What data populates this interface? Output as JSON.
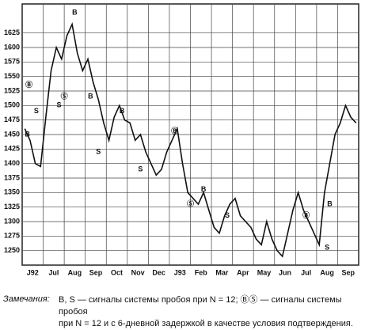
{
  "chart_data": {
    "type": "line",
    "categories": [
      "J92",
      null,
      null,
      null,
      "Jul",
      null,
      null,
      null,
      "Aug",
      null,
      null,
      null,
      "Sep",
      null,
      null,
      null,
      "Oct",
      null,
      null,
      null,
      "Nov",
      null,
      null,
      null,
      "Dec",
      null,
      null,
      null,
      "J93",
      null,
      null,
      null,
      "Feb",
      null,
      null,
      null,
      "Mar",
      null,
      null,
      null,
      "Apr",
      null,
      null,
      null,
      "May",
      null,
      null,
      null,
      "Jun",
      null,
      null,
      null,
      "Jul",
      null,
      null,
      null,
      "Aug",
      null,
      null,
      null,
      "Sep",
      null,
      null,
      null
    ],
    "values": [
      1460,
      1440,
      1400,
      1395,
      1480,
      1560,
      1600,
      1580,
      1620,
      1640,
      1590,
      1560,
      1580,
      1540,
      1510,
      1470,
      1440,
      1480,
      1500,
      1475,
      1470,
      1440,
      1450,
      1420,
      1400,
      1380,
      1390,
      1420,
      1440,
      1460,
      1400,
      1350,
      1340,
      1330,
      1350,
      1320,
      1290,
      1280,
      1310,
      1330,
      1340,
      1310,
      1300,
      1290,
      1270,
      1260,
      1300,
      1270,
      1250,
      1240,
      1280,
      1320,
      1350,
      1320,
      1300,
      1280,
      1260,
      1350,
      1400,
      1450,
      1470,
      1500,
      1480,
      1470
    ],
    "color": "#111111",
    "ylim": [
      1225,
      1675
    ],
    "yticks": [
      1250,
      1275,
      1300,
      1325,
      1350,
      1375,
      1400,
      1425,
      1450,
      1475,
      1500,
      1525,
      1550,
      1575,
      1600,
      1625
    ],
    "grid": true,
    "annotations": [
      "B",
      "S",
      "Ⓑ",
      "Ⓢ",
      "B",
      "S",
      "B",
      "S",
      "B",
      "Ⓑ",
      "S",
      "Ⓢ",
      "B",
      "S",
      "Ⓑ",
      "S",
      "B"
    ],
    "note_label": "Замечания:",
    "note_lines": [
      "B, S — сигналы системы пробоя при N = 12;  ⒷⓈ — сигналы системы пробоя",
      "при N = 12 и с 6-дневной задержкой в качестве условия подтверждения."
    ]
  }
}
